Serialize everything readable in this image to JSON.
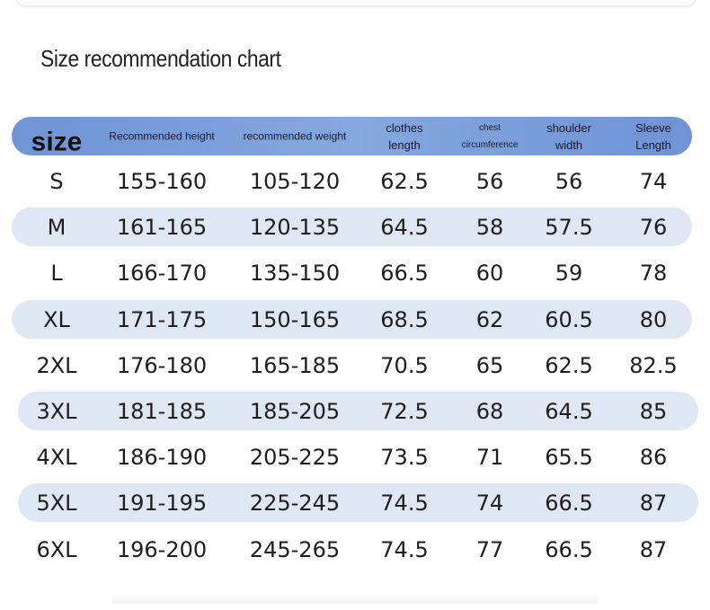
{
  "title": "Size recommendation chart",
  "table": {
    "headers": [
      "size",
      "Recommended height",
      "recommended weight",
      "clothes length",
      "chest circumference",
      "shoulder width",
      "Sleeve Length"
    ],
    "rows": [
      [
        "S",
        "155-160",
        "105-120",
        "62.5",
        "56",
        "56",
        "74"
      ],
      [
        "M",
        "161-165",
        "120-135",
        "64.5",
        "58",
        "57.5",
        "76"
      ],
      [
        "L",
        "166-170",
        "135-150",
        "66.5",
        "60",
        "59",
        "78"
      ],
      [
        "XL",
        "171-175",
        "150-165",
        "68.5",
        "62",
        "60.5",
        "80"
      ],
      [
        "2XL",
        "176-180",
        "165-185",
        "70.5",
        "65",
        "62.5",
        "82.5"
      ],
      [
        "3XL",
        "181-185",
        "185-205",
        "72.5",
        "68",
        "64.5",
        "85"
      ],
      [
        "4XL",
        "186-190",
        "205-225",
        "73.5",
        "71",
        "65.5",
        "86"
      ],
      [
        "5XL",
        "191-195",
        "225-245",
        "74.5",
        "74",
        "66.5",
        "87"
      ],
      [
        "6XL",
        "196-200",
        "245-265",
        "74.5",
        "77",
        "66.5",
        "87"
      ]
    ]
  }
}
